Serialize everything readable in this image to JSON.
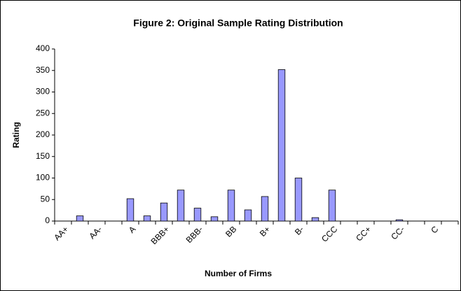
{
  "chart_data": {
    "type": "bar",
    "title": "Figure 2: Original Sample Rating Distribution",
    "y_label": "Rating",
    "x_label": "Number of Firms",
    "categories": [
      "AA+",
      null,
      "AA-",
      null,
      "A",
      null,
      "BBB+",
      null,
      "BBB-",
      null,
      "BB",
      null,
      "B+",
      null,
      "B-",
      null,
      "CCC",
      null,
      "CC+",
      null,
      "CC-",
      null,
      "C",
      null
    ],
    "values": [
      0,
      12,
      0,
      0,
      52,
      12,
      42,
      72,
      30,
      10,
      72,
      26,
      57,
      352,
      100,
      8,
      72,
      0,
      0,
      0,
      3,
      0,
      0,
      0
    ],
    "color": "#9999ff",
    "ylim": [
      0,
      400
    ],
    "yticks": [
      0,
      50,
      100,
      150,
      200,
      250,
      300,
      350,
      400
    ],
    "grid": false
  }
}
